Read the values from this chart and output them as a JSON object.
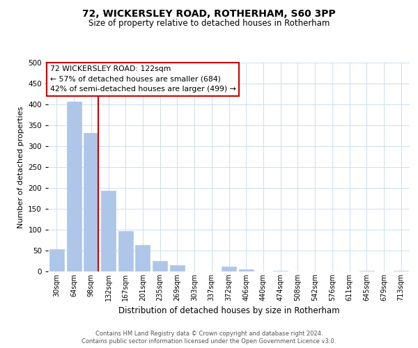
{
  "title": "72, WICKERSLEY ROAD, ROTHERHAM, S60 3PP",
  "subtitle": "Size of property relative to detached houses in Rotherham",
  "xlabel": "Distribution of detached houses by size in Rotherham",
  "ylabel": "Number of detached properties",
  "bar_labels": [
    "30sqm",
    "64sqm",
    "98sqm",
    "132sqm",
    "167sqm",
    "201sqm",
    "235sqm",
    "269sqm",
    "303sqm",
    "337sqm",
    "372sqm",
    "406sqm",
    "440sqm",
    "474sqm",
    "508sqm",
    "542sqm",
    "576sqm",
    "611sqm",
    "645sqm",
    "679sqm",
    "713sqm"
  ],
  "bar_values": [
    53,
    407,
    332,
    193,
    97,
    63,
    25,
    15,
    0,
    0,
    11,
    5,
    0,
    2,
    0,
    0,
    0,
    0,
    2,
    0,
    2
  ],
  "bar_color": "#aec6e8",
  "vline_color": "#cc0000",
  "annotation_title": "72 WICKERSLEY ROAD: 122sqm",
  "annotation_line1": "← 57% of detached houses are smaller (684)",
  "annotation_line2": "42% of semi-detached houses are larger (499) →",
  "annotation_box_color": "#ffffff",
  "annotation_box_edge": "#cc0000",
  "ylim": [
    0,
    500
  ],
  "yticks": [
    0,
    50,
    100,
    150,
    200,
    250,
    300,
    350,
    400,
    450,
    500
  ],
  "footer1": "Contains HM Land Registry data © Crown copyright and database right 2024.",
  "footer2": "Contains public sector information licensed under the Open Government Licence v3.0.",
  "background_color": "#ffffff",
  "grid_color": "#ccddee"
}
